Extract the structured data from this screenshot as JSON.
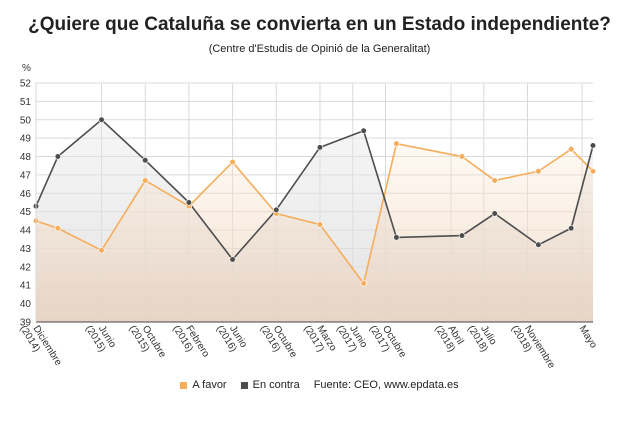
{
  "title": "¿Quiere que Cataluña se convierta en un Estado independiente?",
  "subtitle": "(Centre d'Estudis de Opinió de la Generalitat)",
  "legend": {
    "favor_label": "A favor",
    "contra_label": "En contra",
    "source": "Fuente: CEO, www.epdata.es"
  },
  "colors": {
    "favor": "#f5ad5c",
    "contra": "#4d4d4d",
    "grid": "#d9d9d9",
    "axis": "#444444"
  },
  "chart_data": {
    "type": "line",
    "ylabel": "%",
    "ylim": [
      39,
      52
    ],
    "yticks": [
      39,
      40,
      41,
      42,
      43,
      44,
      45,
      46,
      47,
      48,
      49,
      50,
      51,
      52
    ],
    "x_tick_labels": [
      {
        "pos": 0,
        "text": "Diciembre (2014)"
      },
      {
        "pos": 3,
        "text": "Junio (2015)"
      },
      {
        "pos": 5,
        "text": "Octubre (2015)"
      },
      {
        "pos": 7,
        "text": "Febrero (2016)"
      },
      {
        "pos": 9,
        "text": "Junio (2016)"
      },
      {
        "pos": 11,
        "text": "Octubre (2016)"
      },
      {
        "pos": 13,
        "text": "Marzo (2017)"
      },
      {
        "pos": 14.5,
        "text": "Junio (2017)"
      },
      {
        "pos": 16,
        "text": "Octubre (2017)"
      },
      {
        "pos": 19,
        "text": "Abril (2018)"
      },
      {
        "pos": 20.5,
        "text": "Julio (2018)"
      },
      {
        "pos": 22.5,
        "text": "Noviembre (2018)"
      },
      {
        "pos": 25,
        "text": "Mayo"
      }
    ],
    "series": [
      {
        "name": "A favor",
        "points": [
          [
            0,
            44.5
          ],
          [
            1,
            44.1
          ],
          [
            3,
            42.9
          ],
          [
            5,
            46.7
          ],
          [
            7,
            45.3
          ],
          [
            9,
            47.7
          ],
          [
            11,
            44.9
          ],
          [
            13,
            44.3
          ],
          [
            15,
            41.1
          ],
          [
            16.5,
            48.7
          ],
          [
            19.5,
            48.0
          ],
          [
            21,
            46.7
          ],
          [
            23,
            47.2
          ],
          [
            24.5,
            48.4
          ],
          [
            25.5,
            47.2
          ]
        ]
      },
      {
        "name": "En contra",
        "points": [
          [
            0,
            45.3
          ],
          [
            1,
            48.0
          ],
          [
            3,
            50.0
          ],
          [
            5,
            47.8
          ],
          [
            7,
            45.5
          ],
          [
            9,
            42.4
          ],
          [
            11,
            45.1
          ],
          [
            13,
            48.5
          ],
          [
            15,
            49.4
          ],
          [
            16.5,
            43.6
          ],
          [
            19.5,
            43.7
          ],
          [
            21,
            44.9
          ],
          [
            23,
            43.2
          ],
          [
            24.5,
            44.1
          ],
          [
            25.5,
            48.6
          ]
        ]
      }
    ]
  }
}
